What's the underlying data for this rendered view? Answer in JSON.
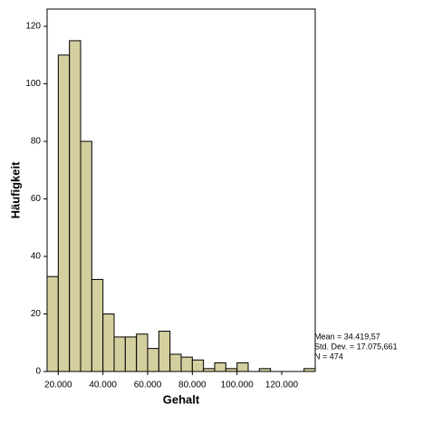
{
  "chart_data": {
    "type": "histogram",
    "x_label": "Gehalt",
    "y_label": "Häufigkeit",
    "bins": [
      15000,
      20000,
      25000,
      30000,
      35000,
      40000,
      45000,
      50000,
      55000,
      60000,
      65000,
      70000,
      75000,
      80000,
      85000,
      90000,
      95000,
      100000,
      105000,
      110000,
      115000,
      120000,
      125000,
      130000,
      135000
    ],
    "values": [
      33,
      110,
      115,
      80,
      32,
      20,
      12,
      12,
      13,
      8,
      14,
      6,
      5,
      4,
      1,
      3,
      1,
      3,
      0,
      1,
      0,
      0,
      0,
      1
    ],
    "color": "#d4cf9e",
    "xlim": [
      15000,
      135000
    ],
    "ylim": [
      0,
      126
    ],
    "xticks": [
      {
        "value": 20000,
        "label": "20.000"
      },
      {
        "value": 40000,
        "label": "40.000"
      },
      {
        "value": 60000,
        "label": "60.000"
      },
      {
        "value": 80000,
        "label": "80.000"
      },
      {
        "value": 100000,
        "label": "100.000"
      },
      {
        "value": 120000,
        "label": "120.000"
      }
    ],
    "yticks": [
      0,
      20,
      40,
      60,
      80,
      100,
      120
    ],
    "annotations": [
      "Mean = 34.419,57",
      "Std. Dev. = 17.075,661",
      "N = 474"
    ]
  }
}
